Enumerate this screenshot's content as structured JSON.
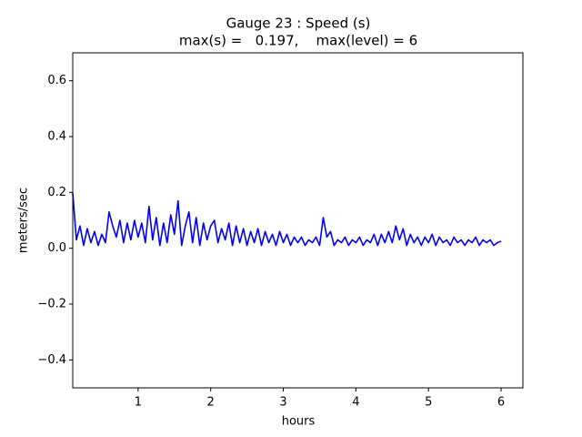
{
  "chart_data": {
    "type": "line",
    "title_lines": [
      "Gauge 23 : Speed (s)",
      "max(s) =   0.197,    max(level) = 6"
    ],
    "xlabel": "hours",
    "ylabel": "meters/sec",
    "color": "#0000ff",
    "xlim": [
      0.1,
      6.3
    ],
    "ylim": [
      -0.5,
      0.7
    ],
    "xticks": [
      1,
      2,
      3,
      4,
      5,
      6
    ],
    "yticks": [
      {
        "value": -0.4,
        "label": "−0.4"
      },
      {
        "value": -0.2,
        "label": "−0.2"
      },
      {
        "value": 0,
        "label": "0.0"
      },
      0.2,
      0.4,
      0.6
    ],
    "x": [
      0.1,
      0.15,
      0.2,
      0.25,
      0.3,
      0.35,
      0.4,
      0.45,
      0.5,
      0.55,
      0.6,
      0.65,
      0.7,
      0.75,
      0.8,
      0.85,
      0.9,
      0.95,
      1.0,
      1.05,
      1.1,
      1.15,
      1.2,
      1.25,
      1.3,
      1.35,
      1.4,
      1.45,
      1.5,
      1.55,
      1.6,
      1.65,
      1.7,
      1.75,
      1.8,
      1.85,
      1.9,
      1.95,
      2.0,
      2.05,
      2.1,
      2.15,
      2.2,
      2.25,
      2.3,
      2.35,
      2.4,
      2.45,
      2.5,
      2.55,
      2.6,
      2.65,
      2.7,
      2.75,
      2.8,
      2.85,
      2.9,
      2.95,
      3.0,
      3.05,
      3.1,
      3.15,
      3.2,
      3.25,
      3.3,
      3.35,
      3.4,
      3.45,
      3.5,
      3.55,
      3.6,
      3.65,
      3.7,
      3.75,
      3.8,
      3.85,
      3.9,
      3.95,
      4.0,
      4.05,
      4.1,
      4.15,
      4.2,
      4.25,
      4.3,
      4.35,
      4.4,
      4.45,
      4.5,
      4.55,
      4.6,
      4.65,
      4.7,
      4.75,
      4.8,
      4.85,
      4.9,
      4.95,
      5.0,
      5.05,
      5.1,
      5.15,
      5.2,
      5.25,
      5.3,
      5.35,
      5.4,
      5.45,
      5.5,
      5.55,
      5.6,
      5.65,
      5.7,
      5.75,
      5.8,
      5.85,
      5.9,
      5.95,
      6.0
    ],
    "values": [
      0.197,
      0.03,
      0.08,
      0.01,
      0.07,
      0.02,
      0.06,
      0.01,
      0.05,
      0.02,
      0.13,
      0.08,
      0.04,
      0.1,
      0.02,
      0.09,
      0.03,
      0.1,
      0.04,
      0.09,
      0.02,
      0.15,
      0.03,
      0.11,
      0.01,
      0.09,
      0.02,
      0.12,
      0.05,
      0.17,
      0.01,
      0.08,
      0.13,
      0.02,
      0.11,
      0.01,
      0.09,
      0.03,
      0.08,
      0.1,
      0.02,
      0.07,
      0.03,
      0.09,
      0.01,
      0.08,
      0.02,
      0.07,
      0.01,
      0.06,
      0.02,
      0.07,
      0.01,
      0.06,
      0.02,
      0.05,
      0.01,
      0.06,
      0.02,
      0.05,
      0.01,
      0.04,
      0.02,
      0.04,
      0.01,
      0.03,
      0.02,
      0.04,
      0.01,
      0.11,
      0.04,
      0.06,
      0.01,
      0.03,
      0.02,
      0.04,
      0.01,
      0.03,
      0.02,
      0.04,
      0.01,
      0.03,
      0.02,
      0.05,
      0.01,
      0.05,
      0.02,
      0.06,
      0.02,
      0.08,
      0.03,
      0.07,
      0.01,
      0.05,
      0.02,
      0.04,
      0.01,
      0.04,
      0.02,
      0.05,
      0.01,
      0.04,
      0.02,
      0.03,
      0.01,
      0.04,
      0.02,
      0.03,
      0.01,
      0.03,
      0.02,
      0.04,
      0.01,
      0.03,
      0.02,
      0.03,
      0.01,
      0.02,
      0.025
    ]
  }
}
